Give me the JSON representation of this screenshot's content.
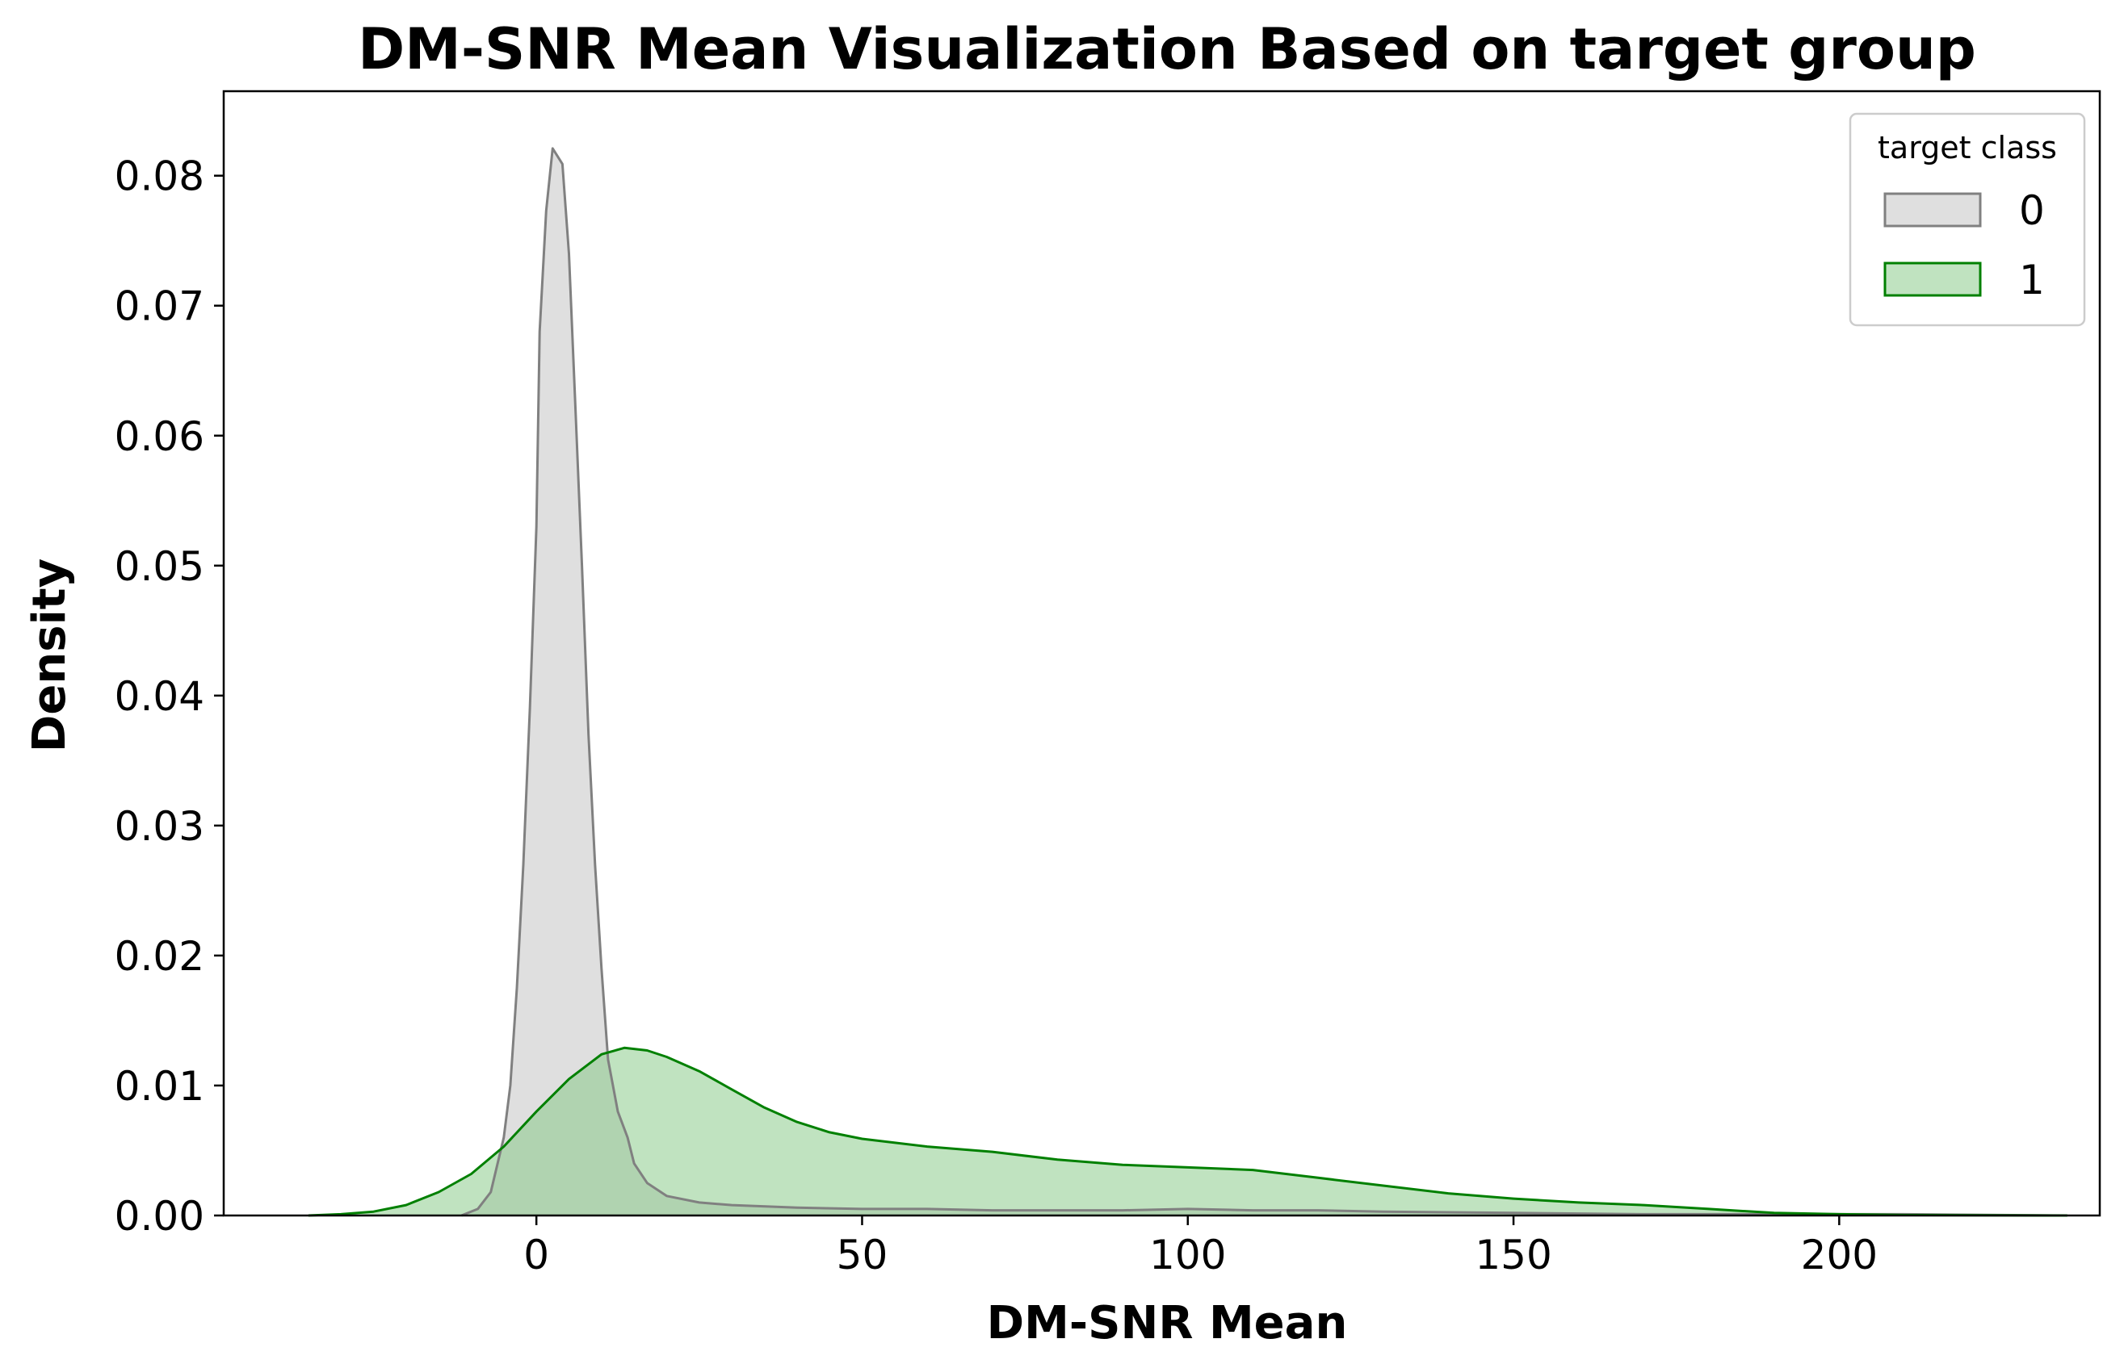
{
  "chart_data": {
    "type": "area",
    "title": "DM-SNR Mean Visualization Based on target group",
    "xlabel": "DM-SNR Mean",
    "ylabel": "Density",
    "xlim": [
      -48,
      240
    ],
    "ylim": [
      0,
      0.0865
    ],
    "xticks": [
      0,
      50,
      100,
      150,
      200
    ],
    "yticks": [
      0.0,
      0.01,
      0.02,
      0.03,
      0.04,
      0.05,
      0.06,
      0.07,
      0.08
    ],
    "grid": false,
    "legend": {
      "title": "target class",
      "placement": "top-right",
      "entries": [
        "0",
        "1"
      ]
    },
    "series": [
      {
        "name": "0",
        "line_color": "#808080",
        "fill_color": "#bfbfbf",
        "points": [
          [
            -11.5,
            0.0
          ],
          [
            -9,
            0.0005
          ],
          [
            -7,
            0.0018
          ],
          [
            -5,
            0.006
          ],
          [
            -4,
            0.01
          ],
          [
            -3,
            0.0175
          ],
          [
            -2,
            0.027
          ],
          [
            -1,
            0.039
          ],
          [
            0,
            0.053
          ],
          [
            0.5,
            0.068
          ],
          [
            1.5,
            0.0773
          ],
          [
            2.5,
            0.0821
          ],
          [
            4,
            0.0809
          ],
          [
            5,
            0.074
          ],
          [
            6,
            0.062
          ],
          [
            7,
            0.05
          ],
          [
            8,
            0.037
          ],
          [
            9,
            0.027
          ],
          [
            10,
            0.019
          ],
          [
            11,
            0.012
          ],
          [
            12.5,
            0.008
          ],
          [
            14,
            0.006
          ],
          [
            15,
            0.004
          ],
          [
            17,
            0.0025
          ],
          [
            20,
            0.0015
          ],
          [
            25,
            0.001
          ],
          [
            30,
            0.0008
          ],
          [
            40,
            0.0006
          ],
          [
            50,
            0.0005
          ],
          [
            60,
            0.0005
          ],
          [
            70,
            0.0004
          ],
          [
            80,
            0.0004
          ],
          [
            90,
            0.0004
          ],
          [
            100,
            0.0005
          ],
          [
            110,
            0.0004
          ],
          [
            120,
            0.0004
          ],
          [
            130,
            0.0003
          ],
          [
            150,
            0.0002
          ],
          [
            170,
            0.0001
          ],
          [
            190,
            0.0001
          ],
          [
            210,
            0.0001
          ],
          [
            235,
            0.0
          ]
        ]
      },
      {
        "name": "1",
        "line_color": "#008000",
        "fill_color": "#82c882",
        "points": [
          [
            -35,
            0.0
          ],
          [
            -30,
            0.0001
          ],
          [
            -25,
            0.0003
          ],
          [
            -20,
            0.0008
          ],
          [
            -15,
            0.0018
          ],
          [
            -10,
            0.0032
          ],
          [
            -5,
            0.0053
          ],
          [
            0,
            0.008
          ],
          [
            5,
            0.0105
          ],
          [
            10,
            0.0124
          ],
          [
            13.5,
            0.0129
          ],
          [
            17,
            0.0127
          ],
          [
            20,
            0.0122
          ],
          [
            25,
            0.0111
          ],
          [
            30,
            0.0097
          ],
          [
            35,
            0.0083
          ],
          [
            40,
            0.0072
          ],
          [
            45,
            0.0064
          ],
          [
            50,
            0.0059
          ],
          [
            60,
            0.0053
          ],
          [
            70,
            0.0049
          ],
          [
            80,
            0.0043
          ],
          [
            90,
            0.0039
          ],
          [
            100,
            0.0037
          ],
          [
            110,
            0.0035
          ],
          [
            120,
            0.0029
          ],
          [
            130,
            0.0023
          ],
          [
            140,
            0.0017
          ],
          [
            150,
            0.0013
          ],
          [
            160,
            0.001
          ],
          [
            170,
            0.0008
          ],
          [
            180,
            0.0005
          ],
          [
            190,
            0.0002
          ],
          [
            200,
            0.0001
          ],
          [
            210,
            3e-05
          ],
          [
            235,
            0.0
          ]
        ]
      }
    ]
  }
}
